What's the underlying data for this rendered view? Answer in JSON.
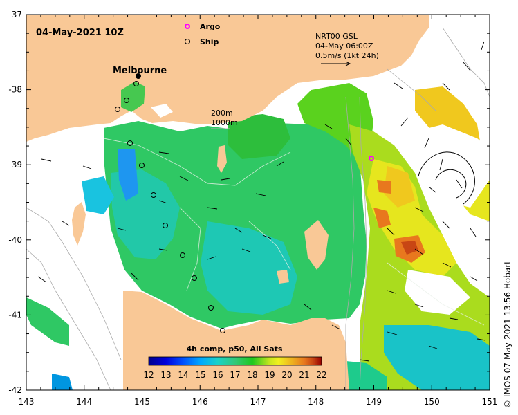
{
  "map": {
    "date_label": "04-May-2021 10Z",
    "city_label": "Melbourne",
    "legend": {
      "argo_label": "Argo",
      "ship_label": "Ship",
      "argo_color": "#ff00ff",
      "ship_color": "#000000"
    },
    "current_reference": {
      "line1": "NRT00 GSL",
      "line2": "04-May 06:00Z",
      "line3": "0.5m/s (1kt 24h)"
    },
    "isobaths": {
      "label_200": "200m",
      "label_1000": "1000m"
    },
    "axes": {
      "lon_ticks": [
        "143",
        "144",
        "145",
        "146",
        "147",
        "148",
        "149",
        "150",
        "151"
      ],
      "lat_ticks": [
        "-37",
        "-38",
        "-39",
        "-40",
        "-41",
        "-42"
      ],
      "lon_range": [
        143,
        151
      ],
      "lat_range": [
        -42,
        -37
      ]
    },
    "colorbar": {
      "title": "4h comp, p50, All Sats",
      "ticks": [
        "12",
        "13",
        "14",
        "15",
        "16",
        "17",
        "18",
        "19",
        "20",
        "21",
        "22"
      ],
      "range": [
        12,
        22
      ],
      "colors": [
        "#00008c",
        "#0000dd",
        "#0050ff",
        "#00a8ff",
        "#19d2c8",
        "#33c878",
        "#1ec81e",
        "#8cdc1e",
        "#f0f01e",
        "#f0c81e",
        "#e8781e",
        "#c84614",
        "#960000"
      ]
    },
    "credit": "© IMOS 07-May-2021 13:56 Hobart",
    "colors": {
      "land": "#f9c896",
      "ocean_blank": "#ffffff"
    }
  }
}
